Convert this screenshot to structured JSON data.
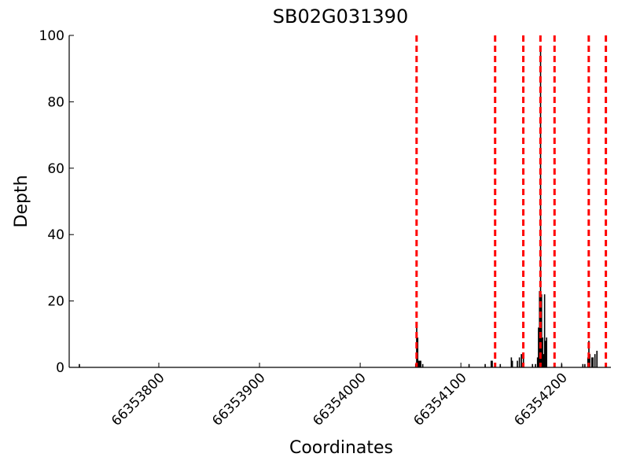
{
  "chart_data": {
    "type": "bar",
    "title": "SB02G031390",
    "x_label": "Coordinates",
    "y_label": "Depth",
    "x": [
      66353721,
      66354055,
      66354056,
      66354057,
      66354058,
      66354059,
      66354060,
      66354062,
      66354108,
      66354124,
      66354130,
      66354131,
      66354139,
      66354150,
      66354151,
      66354156,
      66354158,
      66354160,
      66354162,
      66354171,
      66354174,
      66354176,
      66354177,
      66354178,
      66354179,
      66354180,
      66354181,
      66354182,
      66354183,
      66354184,
      66354185,
      66354200,
      66354221,
      66354223,
      66354226,
      66354227,
      66354228,
      66354230,
      66354231,
      66354233,
      66354235
    ],
    "values": [
      1,
      1,
      13,
      9,
      2,
      2,
      2,
      1,
      1,
      1,
      2,
      2,
      1,
      3,
      2,
      2,
      3,
      4,
      3,
      1,
      1,
      3,
      12,
      23,
      96,
      22,
      9,
      4,
      22,
      8,
      9,
      1,
      1,
      1,
      3,
      8,
      4,
      3,
      3,
      4,
      5
    ],
    "color": "#000000",
    "vlines": [
      66354056,
      66354134,
      66354162,
      66354179,
      66354193,
      66354227,
      66354244
    ],
    "vline_color": "#ff0000",
    "xlim": [
      66353711,
      66354249
    ],
    "xticks": [
      66353800,
      66353900,
      66354000,
      66354100,
      66354200
    ],
    "ylim": [
      0,
      100
    ],
    "yticks": [
      0,
      20,
      40,
      60,
      80,
      100
    ]
  }
}
